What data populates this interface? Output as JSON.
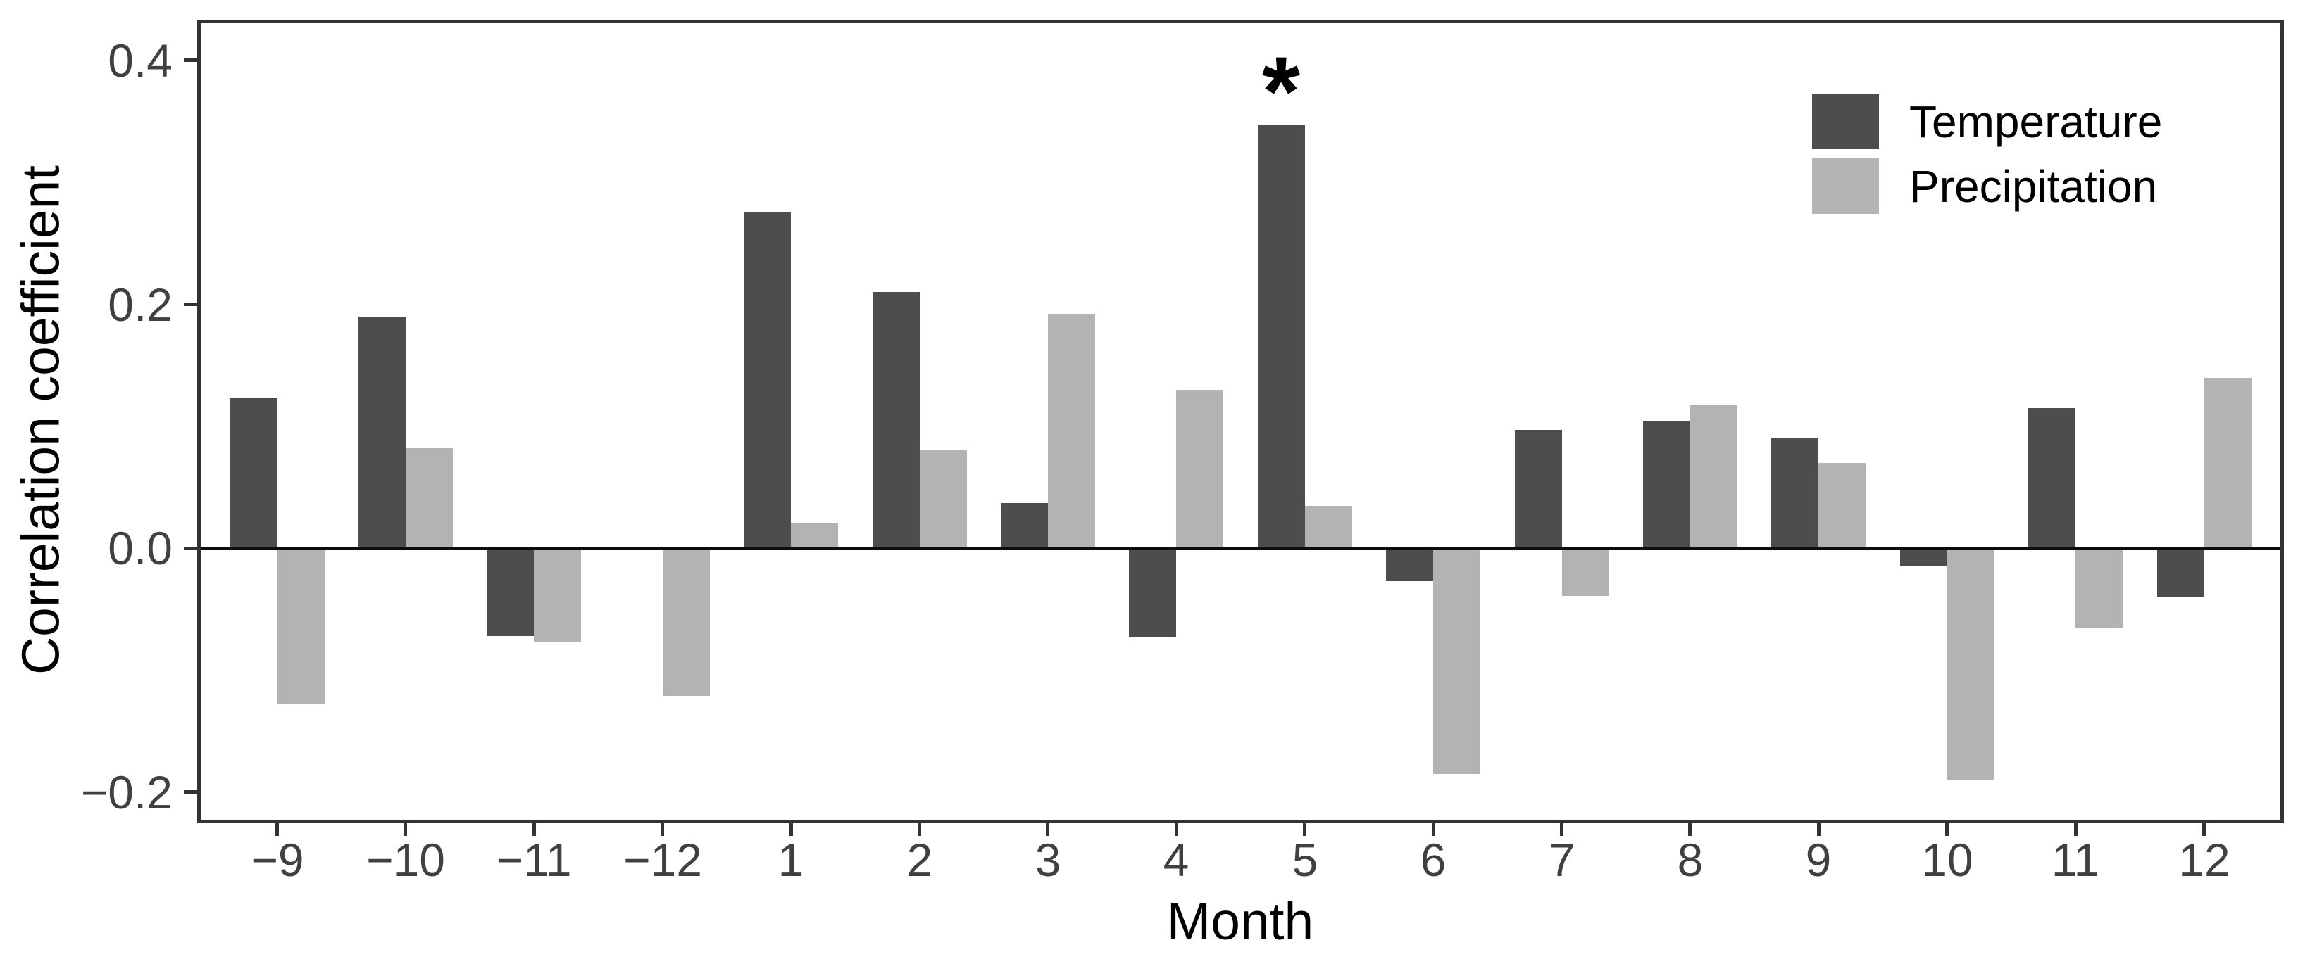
{
  "chart_data": {
    "type": "bar",
    "title": "",
    "xlabel": "Month",
    "ylabel": "Correlation coefficient",
    "categories": [
      "−9",
      "−10",
      "−11",
      "−12",
      "1",
      "2",
      "3",
      "4",
      "5",
      "6",
      "7",
      "8",
      "9",
      "10",
      "11",
      "12"
    ],
    "series": [
      {
        "name": "Temperature",
        "color": "#4d4d4d",
        "values": [
          0.123,
          0.19,
          -0.072,
          0,
          0.276,
          0.21,
          0.037,
          -0.073,
          0.347,
          -0.027,
          0.097,
          0.104,
          0.091,
          -0.015,
          0.115,
          -0.04
        ]
      },
      {
        "name": "Precipitation",
        "color": "#b3b3b3",
        "values": [
          -0.128,
          0.082,
          -0.077,
          -0.121,
          0.021,
          0.081,
          0.192,
          0.13,
          0.035,
          -0.185,
          -0.039,
          0.118,
          0.07,
          -0.19,
          -0.066,
          0.14
        ]
      }
    ],
    "y_ticks": [
      {
        "value": 0.4,
        "label": "0.4"
      },
      {
        "value": 0.2,
        "label": "0.2"
      },
      {
        "value": 0.0,
        "label": "0.0"
      },
      {
        "value": -0.2,
        "label": "−0.2"
      }
    ],
    "ylim": [
      -0.2225,
      0.4305
    ],
    "grid": false,
    "zero_line": true,
    "legend_position": "top-right-inside",
    "annotations": [
      {
        "text": "*",
        "category": "5",
        "series": "Temperature"
      }
    ]
  },
  "colors": {
    "axis_text": "#404040",
    "axis_line": "#333333",
    "title_text": "#000000",
    "background": "#ffffff"
  }
}
